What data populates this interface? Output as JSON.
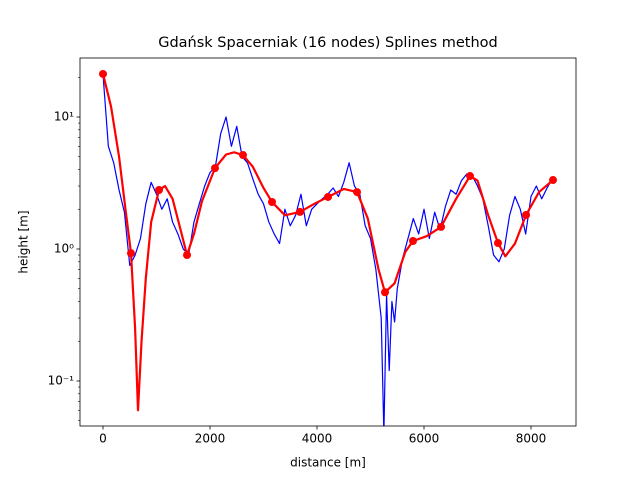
{
  "chart_data": {
    "type": "line",
    "title": "Gdańsk Spacerniak (16 nodes) Splines method",
    "xlabel": "distance [m]",
    "ylabel": "height [m]",
    "xlim": [
      -430,
      8841
    ],
    "ylim": [
      0.0456,
      28
    ],
    "yscale": "log",
    "xticks": [
      0,
      2000,
      4000,
      6000,
      8000
    ],
    "yticks": [
      {
        "value": 0.1,
        "label": "10⁻¹"
      },
      {
        "value": 1,
        "label": "10⁰"
      },
      {
        "value": 10,
        "label": "10¹"
      }
    ],
    "yminorticks": [
      0.05,
      0.06,
      0.07,
      0.08,
      0.09,
      0.2,
      0.3,
      0.4,
      0.5,
      0.6,
      0.7,
      0.8,
      0.9,
      2,
      3,
      4,
      5,
      6,
      7,
      8,
      9,
      20
    ],
    "series": [
      {
        "kind": "line",
        "color": "#0000ff",
        "width": 1.2,
        "x": [
          0,
          100,
          200,
          300,
          400,
          500,
          600,
          700,
          800,
          900,
          1000,
          1100,
          1200,
          1300,
          1400,
          1500,
          1600,
          1700,
          1800,
          1900,
          2000,
          2100,
          2200,
          2300,
          2400,
          2500,
          2600,
          2700,
          2800,
          2900,
          3000,
          3100,
          3200,
          3300,
          3400,
          3500,
          3600,
          3700,
          3800,
          3900,
          4000,
          4100,
          4200,
          4300,
          4400,
          4500,
          4600,
          4700,
          4800,
          4900,
          5000,
          5100,
          5200,
          5250,
          5300,
          5350,
          5400,
          5450,
          5500,
          5600,
          5700,
          5800,
          5900,
          6000,
          6100,
          6200,
          6300,
          6400,
          6500,
          6600,
          6700,
          6800,
          6900,
          7000,
          7100,
          7200,
          7300,
          7400,
          7500,
          7600,
          7700,
          7800,
          7900,
          8000,
          8100,
          8200,
          8300,
          8400
        ],
        "values": [
          21,
          6,
          4.5,
          2.8,
          1.9,
          0.75,
          0.9,
          1.2,
          2.2,
          3.2,
          2.6,
          2.0,
          2.4,
          1.6,
          1.3,
          1.0,
          0.9,
          1.6,
          2.2,
          3.0,
          3.8,
          4.2,
          7.5,
          10,
          6,
          8.5,
          5,
          4.5,
          3.4,
          2.6,
          2.2,
          1.6,
          1.3,
          1.1,
          2.0,
          1.5,
          1.8,
          2.6,
          1.5,
          2.0,
          2.2,
          2.4,
          2.6,
          2.9,
          2.5,
          3.2,
          4.5,
          3.0,
          2.6,
          1.5,
          1.2,
          0.7,
          0.3,
          0.04,
          0.45,
          0.12,
          0.4,
          0.28,
          0.5,
          0.85,
          1.2,
          1.7,
          1.3,
          2.0,
          1.2,
          1.9,
          1.4,
          2.1,
          2.8,
          2.6,
          3.3,
          3.7,
          3.6,
          3.0,
          2.4,
          1.5,
          0.9,
          0.8,
          1.0,
          1.8,
          2.5,
          2.0,
          1.3,
          2.5,
          3.0,
          2.4,
          2.9,
          3.4
        ]
      },
      {
        "kind": "line",
        "color": "#ff0000",
        "width": 2.2,
        "x": [
          0,
          150,
          300,
          420,
          523,
          600,
          654,
          720,
          800,
          900,
          1047,
          1160,
          1300,
          1450,
          1570,
          1700,
          1850,
          2093,
          2300,
          2450,
          2617,
          2800,
          3000,
          3159,
          3400,
          3682,
          3950,
          4206,
          4500,
          4748,
          4950,
          5150,
          5271,
          5450,
          5650,
          5794,
          6050,
          6318,
          6600,
          6860,
          7000,
          7200,
          7383,
          7520,
          7700,
          7907,
          8150,
          8411
        ],
        "values": [
          21.2,
          12,
          5,
          2,
          0.93,
          0.25,
          0.06,
          0.2,
          0.6,
          1.6,
          2.8,
          3.0,
          2.4,
          1.4,
          0.9,
          1.3,
          2.3,
          4.1,
          5.2,
          5.4,
          5.15,
          4.2,
          2.9,
          2.27,
          1.8,
          1.91,
          2.2,
          2.48,
          2.85,
          2.7,
          1.7,
          0.7,
          0.47,
          0.55,
          0.95,
          1.15,
          1.25,
          1.47,
          2.4,
          3.57,
          3.3,
          1.8,
          1.11,
          0.88,
          1.1,
          1.81,
          2.7,
          3.33
        ]
      },
      {
        "kind": "scatter",
        "color": "#ff0000",
        "x": [
          0,
          523,
          1047,
          1570,
          2093,
          2617,
          3159,
          3682,
          4206,
          4748,
          5271,
          5794,
          6318,
          6860,
          7383,
          7907,
          8411
        ],
        "values": [
          21.2,
          0.93,
          2.8,
          0.9,
          4.1,
          5.15,
          2.27,
          1.91,
          2.48,
          2.7,
          0.47,
          1.15,
          1.47,
          3.57,
          1.11,
          1.81,
          3.33
        ]
      }
    ]
  }
}
